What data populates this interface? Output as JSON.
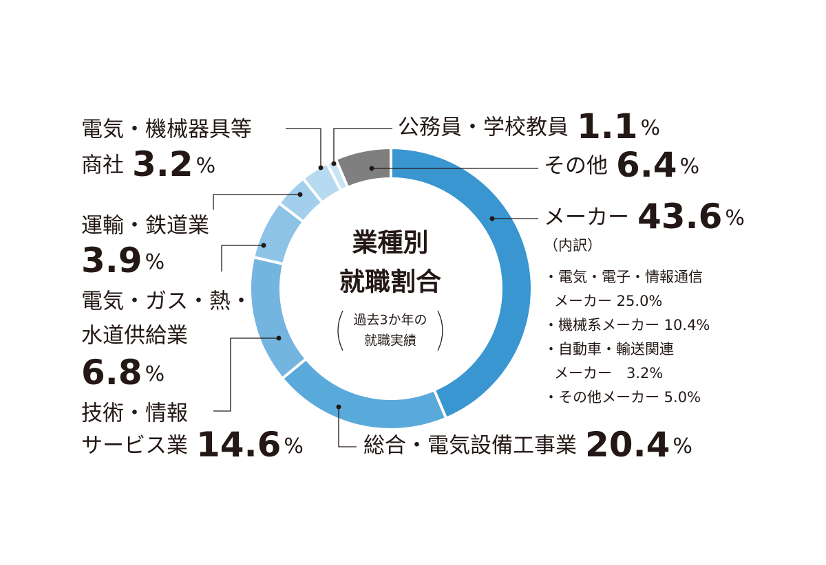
{
  "chart_data": {
    "type": "donut",
    "title": [
      "業種別",
      "就職割合"
    ],
    "subtitle": [
      "過去3か年の",
      "就職実績"
    ],
    "categories": [
      [
        "メーカー"
      ],
      [
        "総合・電気設備工事業"
      ],
      [
        "技術・情報",
        "サービス業"
      ],
      [
        "電気・ガス・熱・",
        "水道供給業"
      ],
      [
        "運輸・鉄道業"
      ],
      [
        "電気・機械器具等",
        "商社"
      ],
      [
        "公務員・学校教員"
      ],
      [
        "その他"
      ]
    ],
    "values": [
      43.6,
      20.4,
      14.6,
      6.8,
      3.9,
      3.2,
      1.1,
      6.4
    ],
    "value_labels": [
      "43.6%",
      "20.4%",
      "14.6%",
      "6.8%",
      "3.9%",
      "3.2%",
      "1.1%",
      "6.4%"
    ],
    "colors": [
      "#3996d0",
      "#5aa9db",
      "#74b5e0",
      "#8cc3e7",
      "#a2cfec",
      "#b6daf0",
      "#c8e3f3",
      "#7f7f7f"
    ],
    "annotation": {
      "heading": "（内訳）",
      "items": [
        [
          "・電気・電子・情報通信",
          "メーカー 25.0%"
        ],
        [
          "・機械系メーカー 10.4%"
        ],
        [
          "・自動車・輸送関連",
          "メーカー　3.2%"
        ],
        [
          "・その他メーカー 5.0%"
        ]
      ]
    }
  }
}
